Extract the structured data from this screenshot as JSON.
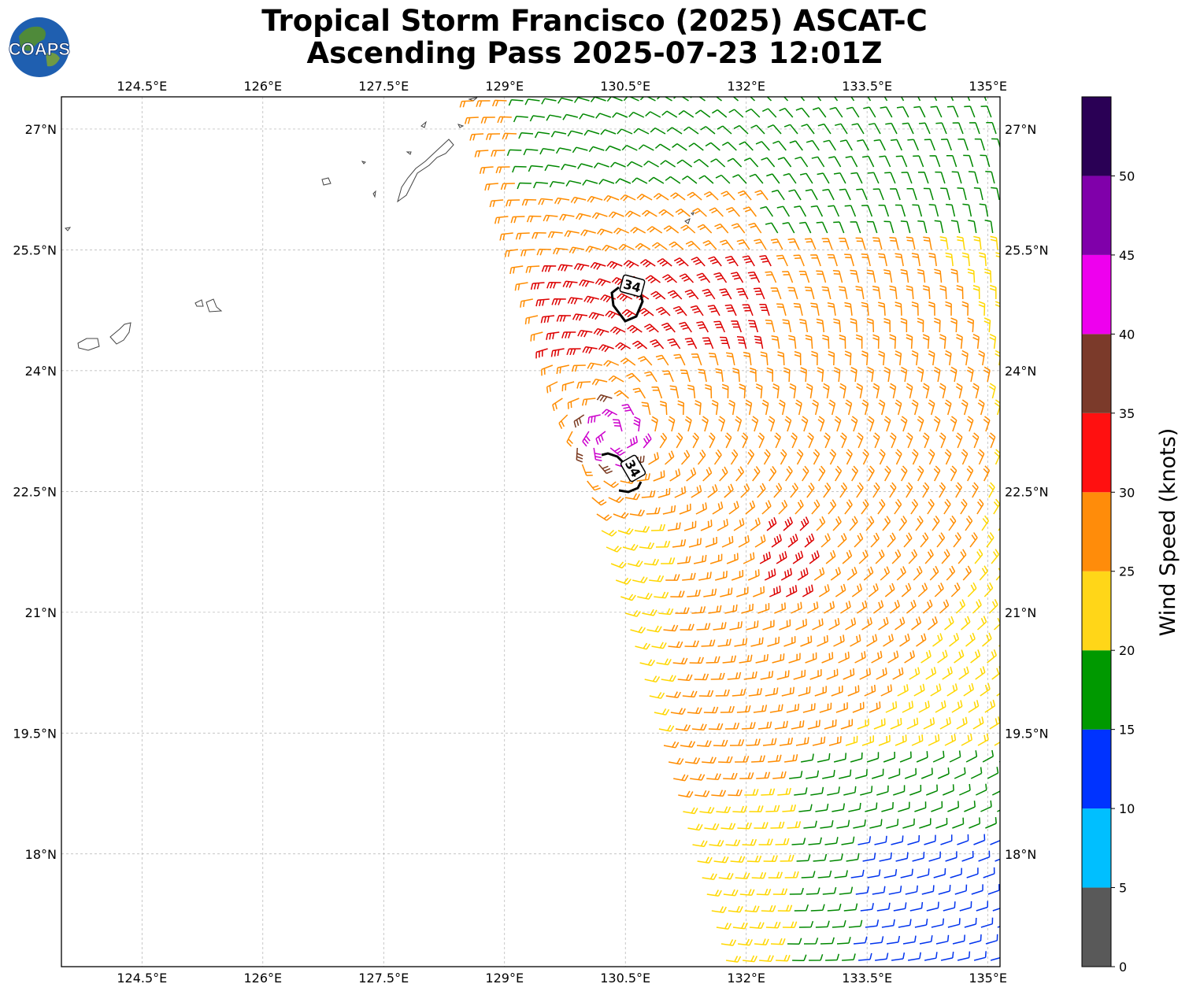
{
  "title": {
    "line1": "Tropical Storm Francisco (2025) ASCAT-C",
    "line2": "Ascending Pass 2025-07-23 12:01Z"
  },
  "logo": {
    "text": "COAPS"
  },
  "map": {
    "lon_range": [
      123.5,
      135.15
    ],
    "lat_range": [
      16.6,
      27.4
    ],
    "lon_ticks": [
      "124.5°E",
      "126°E",
      "127.5°E",
      "129°E",
      "130.5°E",
      "132°E",
      "133.5°E",
      "135°E"
    ],
    "lat_ticks": [
      "27°N",
      "25.5°N",
      "24°N",
      "22.5°N",
      "21°N",
      "19.5°N",
      "18°N"
    ],
    "contour_labels": [
      "34",
      "34"
    ],
    "wind_barb_colors": {
      "yellow": "#ffd700",
      "orange": "#ff8c00",
      "red": "#dd0000",
      "green": "#008800",
      "blue": "#0033ee",
      "magenta": "#cc00cc",
      "brown": "#7b3a20"
    }
  },
  "colorbar": {
    "label": "Wind Speed (knots)",
    "ticks": [
      "0",
      "5",
      "10",
      "15",
      "20",
      "25",
      "30",
      "35",
      "40",
      "45",
      "50"
    ],
    "bins": [
      {
        "min": 0,
        "max": 5,
        "color": "#595959"
      },
      {
        "min": 5,
        "max": 10,
        "color": "#00bfff"
      },
      {
        "min": 10,
        "max": 15,
        "color": "#0033ff"
      },
      {
        "min": 15,
        "max": 20,
        "color": "#009900"
      },
      {
        "min": 20,
        "max": 25,
        "color": "#ffd618"
      },
      {
        "min": 25,
        "max": 30,
        "color": "#ff8c0a"
      },
      {
        "min": 30,
        "max": 35,
        "color": "#ff1010"
      },
      {
        "min": 35,
        "max": 40,
        "color": "#7b3a2a"
      },
      {
        "min": 40,
        "max": 45,
        "color": "#ee00ee"
      },
      {
        "min": 45,
        "max": 50,
        "color": "#8000aa"
      },
      {
        "min": 50,
        "max": 55,
        "color": "#2a0055"
      }
    ]
  }
}
